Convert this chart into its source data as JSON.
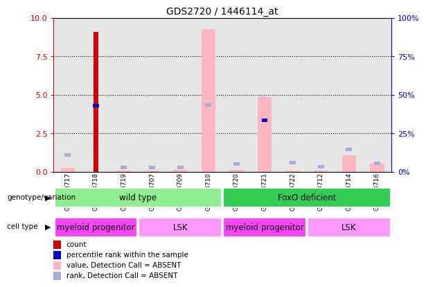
{
  "title": "GDS2720 / 1446114_at",
  "samples": [
    "GSM153717",
    "GSM153718",
    "GSM153719",
    "GSM153707",
    "GSM153709",
    "GSM153710",
    "GSM153720",
    "GSM153721",
    "GSM153722",
    "GSM153712",
    "GSM153714",
    "GSM153716"
  ],
  "count_values": [
    0.0,
    9.1,
    0.0,
    0.0,
    0.0,
    0.0,
    0.0,
    0.0,
    0.0,
    0.0,
    0.0,
    0.0
  ],
  "rank_values": [
    0.0,
    4.3,
    0.0,
    0.0,
    0.0,
    0.0,
    0.0,
    3.35,
    0.0,
    0.0,
    0.0,
    0.0
  ],
  "pink_bar_values": [
    0.25,
    0.0,
    0.08,
    0.08,
    0.1,
    9.3,
    0.1,
    4.85,
    0.08,
    0.08,
    1.05,
    0.5
  ],
  "blue_abs_values": [
    1.1,
    4.3,
    0.28,
    0.28,
    0.28,
    4.35,
    0.5,
    3.35,
    0.6,
    0.3,
    1.45,
    0.55
  ],
  "ylim": [
    0,
    10
  ],
  "y2lim": [
    0,
    100
  ],
  "yticks": [
    0,
    2.5,
    5.0,
    7.5,
    10.0
  ],
  "y2ticks": [
    0,
    25,
    50,
    75,
    100
  ],
  "genotype_groups": [
    {
      "label": "wild type",
      "start": 0,
      "end": 5,
      "color": "#90EE90"
    },
    {
      "label": "FoxO deficient",
      "start": 6,
      "end": 11,
      "color": "#33CC55"
    }
  ],
  "cell_type_groups": [
    {
      "label": "myeloid progenitor",
      "start": 0,
      "end": 2,
      "color": "#FF44FF"
    },
    {
      "label": "LSK",
      "start": 3,
      "end": 5,
      "color": "#FF99FF"
    },
    {
      "label": "myeloid progenitor",
      "start": 6,
      "end": 8,
      "color": "#FF44FF"
    },
    {
      "label": "LSK",
      "start": 9,
      "end": 11,
      "color": "#FF99FF"
    }
  ],
  "count_color": "#CC0000",
  "rank_color": "#0000CC",
  "pink_color": "#FFB6C1",
  "blue_abs_color": "#AAAADD",
  "left_axis_color": "#CC0000",
  "right_axis_color": "#0000CC",
  "col_bg_color": "#C8C8C8",
  "legend": [
    {
      "label": "count",
      "color": "#CC0000"
    },
    {
      "label": "percentile rank within the sample",
      "color": "#0000CC"
    },
    {
      "label": "value, Detection Call = ABSENT",
      "color": "#FFB6C1"
    },
    {
      "label": "rank, Detection Call = ABSENT",
      "color": "#AAAADD"
    }
  ]
}
